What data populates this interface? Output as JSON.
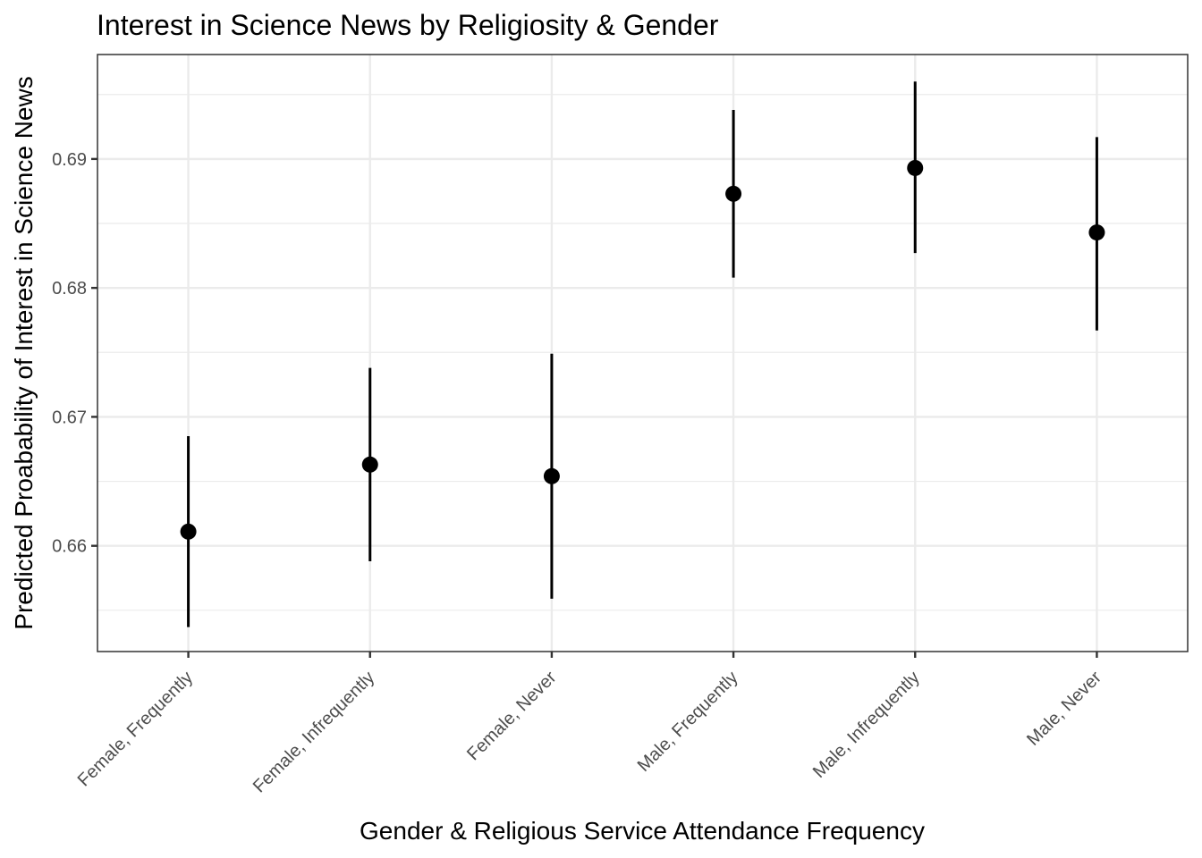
{
  "chart_data": {
    "type": "scatter",
    "title": "Interest in Science News by Religiosity & Gender",
    "xlabel": "Gender & Religious Service Attendance Frequency",
    "ylabel": "Predicted Proabability of Interest in Science News",
    "categories": [
      "Female, Frequently",
      "Female, Infrequently",
      "Female, Never",
      "Male, Frequently",
      "Male, Infrequently",
      "Male, Never"
    ],
    "values": [
      0.6611,
      0.6663,
      0.6654,
      0.6873,
      0.6893,
      0.6843
    ],
    "lower": [
      0.6537,
      0.6588,
      0.6559,
      0.6808,
      0.6827,
      0.6767
    ],
    "upper": [
      0.6685,
      0.6738,
      0.6749,
      0.6938,
      0.696,
      0.6917
    ],
    "ylim": [
      0.6518,
      0.6981
    ],
    "yticks": [
      0.66,
      0.67,
      0.68,
      0.69
    ],
    "ytick_labels": [
      "0.66",
      "0.67",
      "0.68",
      "0.69"
    ],
    "grid": true
  }
}
